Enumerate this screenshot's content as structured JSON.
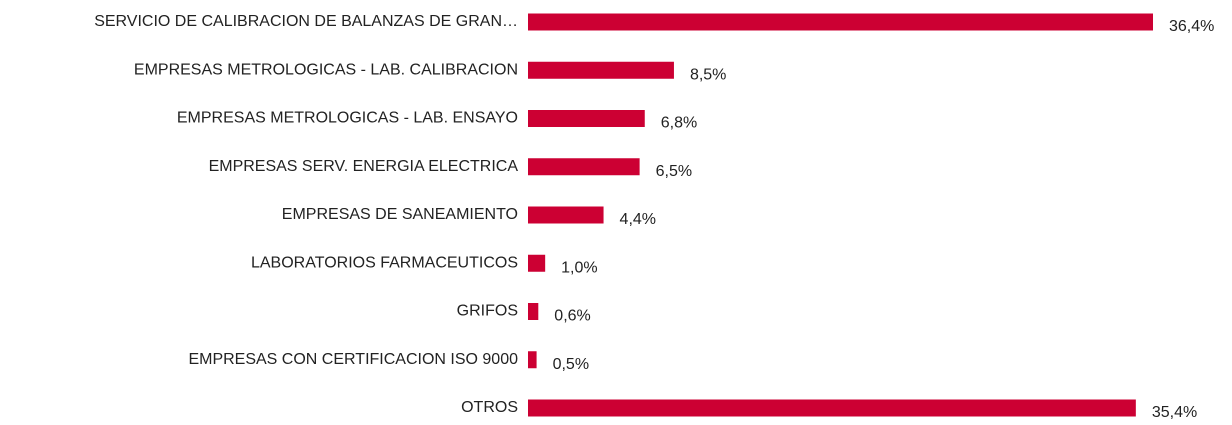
{
  "chart_data": {
    "type": "bar",
    "orientation": "horizontal",
    "color": "#cc0033",
    "categories": [
      "SERVICIO DE CALIBRACION DE BALANZAS DE GRAN…",
      "EMPRESAS METROLOGICAS - LAB. CALIBRACION",
      "EMPRESAS METROLOGICAS - LAB. ENSAYO",
      "EMPRESAS SERV. ENERGIA ELECTRICA",
      "EMPRESAS DE SANEAMIENTO",
      "LABORATORIOS FARMACEUTICOS",
      "GRIFOS",
      "EMPRESAS CON CERTIFICACION ISO 9000",
      "OTROS"
    ],
    "values": [
      36.4,
      8.5,
      6.8,
      6.5,
      4.4,
      1.0,
      0.6,
      0.5,
      35.4
    ],
    "value_labels": [
      "36,4%",
      "8,5%",
      "6,8%",
      "6,5%",
      "4,4%",
      "1,0%",
      "0,6%",
      "0,5%",
      "35,4%"
    ]
  }
}
